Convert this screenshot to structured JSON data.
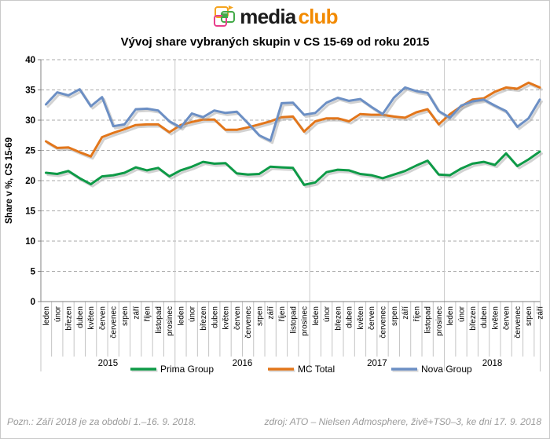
{
  "logo": {
    "media": "media",
    "club": "club",
    "icon": "overlapping-frames-logo-icon",
    "colors": {
      "orange": "#f5a41f",
      "green": "#44aa49",
      "pink": "#e83e8c",
      "club_text": "#f28a00"
    }
  },
  "title": "Vývoj share vybraných skupin v CS 15-69 od roku 2015",
  "chart_data": {
    "type": "line",
    "title": "Vývoj share vybraných skupin v CS 15-69 od roku 2015",
    "xlabel": "",
    "ylabel": "Share v %, CS 15-69",
    "ylim": [
      0,
      40
    ],
    "ytick_step": 5,
    "grid": "dashed-horizontal",
    "legend_position": "bottom",
    "month_labels": [
      "leden",
      "únor",
      "březen",
      "duben",
      "květen",
      "červen",
      "červenec",
      "srpen",
      "září",
      "říjen",
      "listopad",
      "prosinec"
    ],
    "years": [
      {
        "label": "2015",
        "months": 12
      },
      {
        "label": "2016",
        "months": 12
      },
      {
        "label": "2017",
        "months": 12
      },
      {
        "label": "2018",
        "months": 9
      }
    ],
    "categories": [
      "leden",
      "únor",
      "březen",
      "duben",
      "květen",
      "červen",
      "červenec",
      "srpen",
      "září",
      "říjen",
      "listopad",
      "prosinec",
      "leden",
      "únor",
      "březen",
      "duben",
      "květen",
      "červen",
      "červenec",
      "srpen",
      "září",
      "říjen",
      "listopad",
      "prosinec",
      "leden",
      "únor",
      "březen",
      "duben",
      "květen",
      "červen",
      "červenec",
      "srpen",
      "září",
      "říjen",
      "listopad",
      "prosinec",
      "leden",
      "únor",
      "březen",
      "duben",
      "květen",
      "červen",
      "červenec",
      "srpen",
      "září"
    ],
    "series": [
      {
        "name": "Prima Group",
        "color": "#0e9a47",
        "values": [
          21.3,
          21.1,
          21.6,
          20.4,
          19.4,
          20.7,
          20.9,
          21.3,
          22.2,
          21.7,
          22.1,
          20.7,
          21.7,
          22.3,
          23.1,
          22.8,
          22.9,
          21.2,
          21.0,
          21.1,
          22.3,
          22.2,
          22.1,
          19.3,
          19.7,
          21.4,
          21.8,
          21.7,
          21.1,
          20.9,
          20.4,
          21.0,
          21.6,
          22.5,
          23.3,
          21.0,
          20.9,
          22.0,
          22.8,
          23.1,
          22.6,
          24.5,
          22.4,
          23.5,
          24.8
        ]
      },
      {
        "name": "MC Total",
        "color": "#e2761b",
        "values": [
          26.5,
          25.4,
          25.5,
          24.7,
          24.0,
          27.2,
          27.9,
          28.5,
          29.2,
          29.3,
          29.3,
          28.0,
          29.2,
          29.7,
          30.1,
          30.1,
          28.4,
          28.4,
          28.8,
          29.3,
          29.8,
          30.5,
          30.6,
          28.1,
          29.8,
          30.3,
          30.3,
          29.8,
          31.0,
          30.9,
          30.9,
          30.6,
          30.4,
          31.3,
          31.8,
          29.3,
          31.0,
          32.3,
          33.4,
          33.6,
          34.7,
          35.4,
          35.2,
          36.2,
          35.4
        ]
      },
      {
        "name": "Nova Group",
        "color": "#6c8fc4",
        "values": [
          32.6,
          34.6,
          34.1,
          35.1,
          32.3,
          33.8,
          29.0,
          29.3,
          31.8,
          31.9,
          31.6,
          29.8,
          28.8,
          31.1,
          30.5,
          31.6,
          31.2,
          31.4,
          29.5,
          27.5,
          26.6,
          32.8,
          32.9,
          30.9,
          31.2,
          32.9,
          33.7,
          33.2,
          33.5,
          32.2,
          31.0,
          33.7,
          35.4,
          34.8,
          34.5,
          31.5,
          30.4,
          32.4,
          33.1,
          33.4,
          32.4,
          31.5,
          28.9,
          30.3,
          33.4
        ]
      }
    ]
  },
  "footer": {
    "note": "Pozn.: Září 2018 je za období 1.–16. 9. 2018.",
    "source": "zdroj: ATO – Nielsen Admosphere, živě+TS0–3, ke dni 17. 9. 2018"
  }
}
